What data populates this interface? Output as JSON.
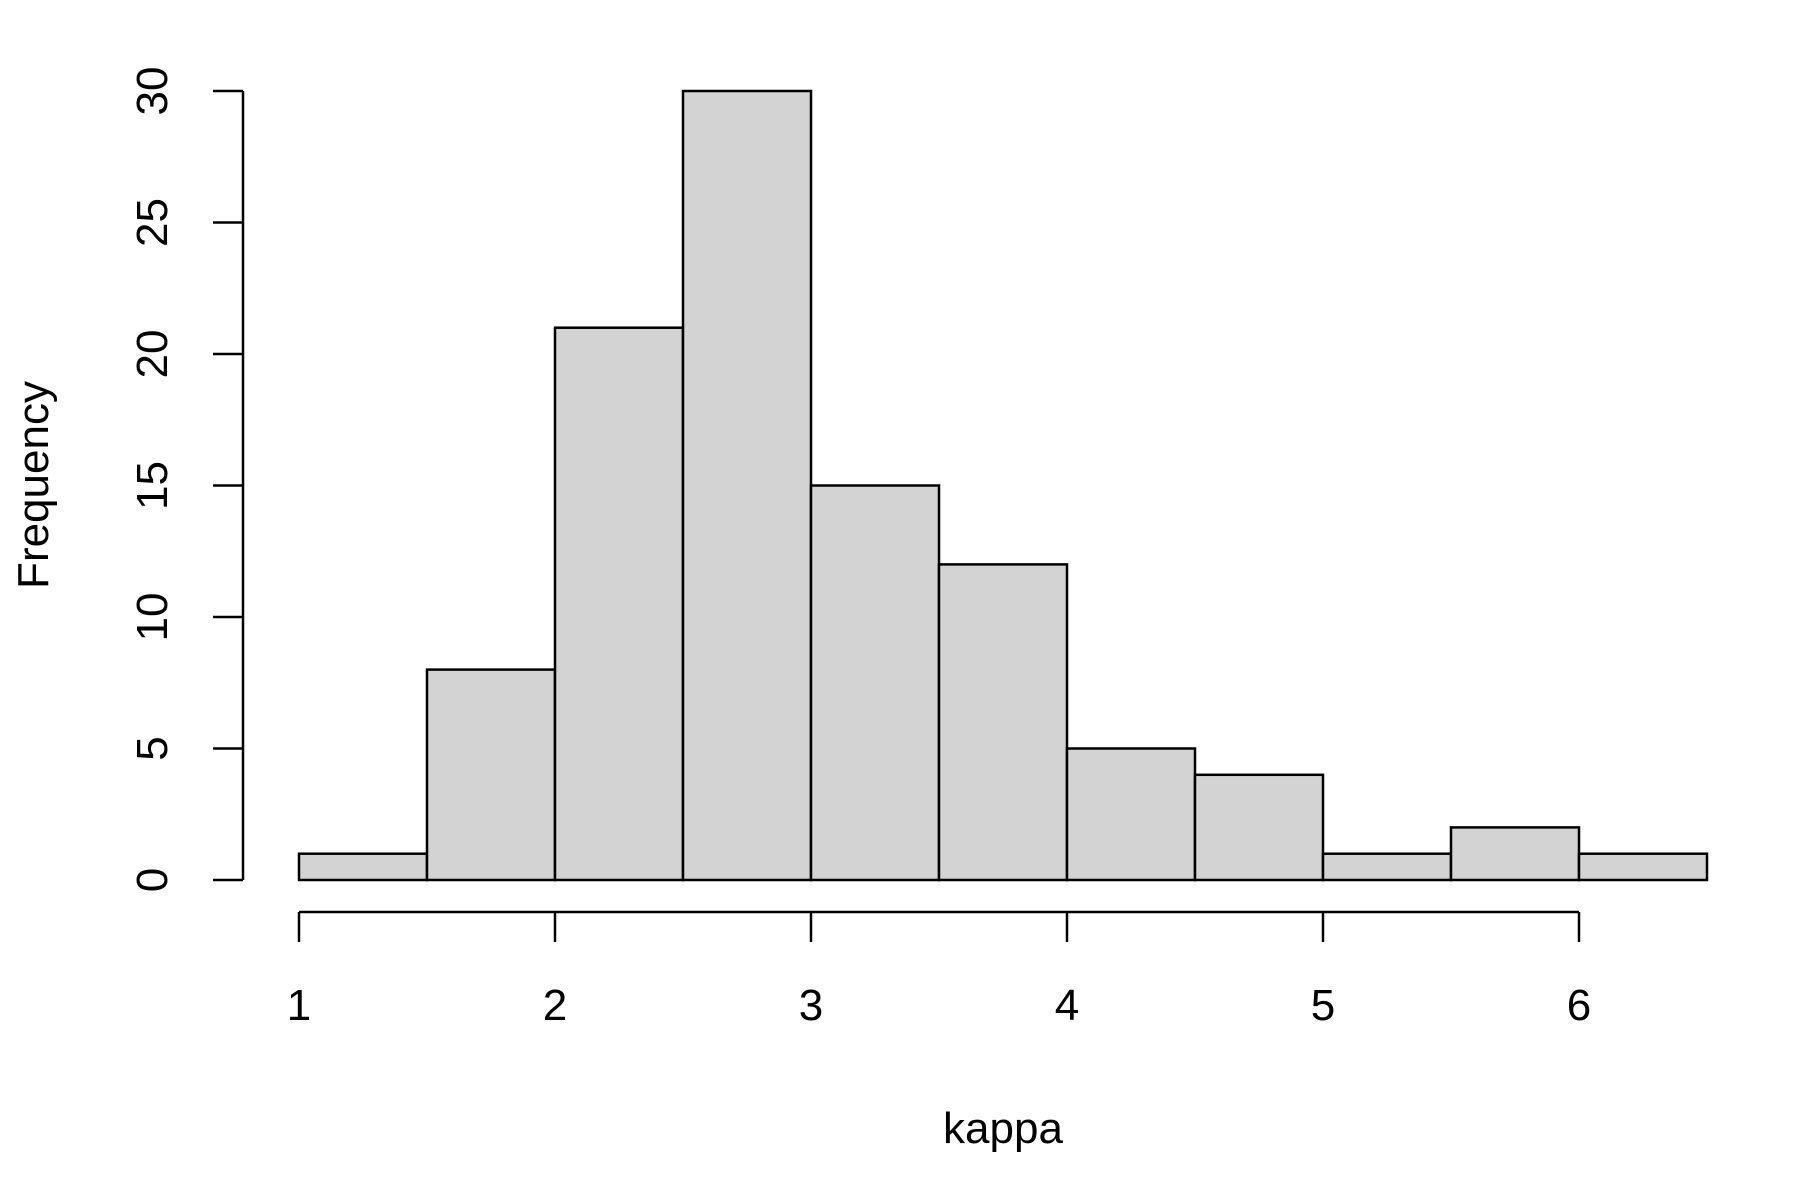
{
  "chart_data": {
    "type": "bar",
    "title": "",
    "xlabel": "kappa",
    "ylabel": "Frequency",
    "bins": [
      {
        "start": 1.0,
        "end": 1.5,
        "count": 1
      },
      {
        "start": 1.5,
        "end": 2.0,
        "count": 8
      },
      {
        "start": 2.0,
        "end": 2.5,
        "count": 21
      },
      {
        "start": 2.5,
        "end": 3.0,
        "count": 30
      },
      {
        "start": 3.0,
        "end": 3.5,
        "count": 15
      },
      {
        "start": 3.5,
        "end": 4.0,
        "count": 12
      },
      {
        "start": 4.0,
        "end": 4.5,
        "count": 5
      },
      {
        "start": 4.5,
        "end": 5.0,
        "count": 4
      },
      {
        "start": 5.0,
        "end": 5.5,
        "count": 1
      },
      {
        "start": 5.5,
        "end": 6.0,
        "count": 2
      },
      {
        "start": 6.0,
        "end": 6.5,
        "count": 1
      }
    ],
    "x_ticks": [
      "1",
      "2",
      "3",
      "4",
      "5",
      "6"
    ],
    "y_ticks": [
      "0",
      "5",
      "10",
      "15",
      "20",
      "25",
      "30"
    ],
    "xlim": [
      1,
      6.5
    ],
    "ylim": [
      0,
      30
    ],
    "grid": false,
    "legend": "none",
    "bar_fill": "#d3d3d3",
    "bar_stroke": "#000000"
  }
}
